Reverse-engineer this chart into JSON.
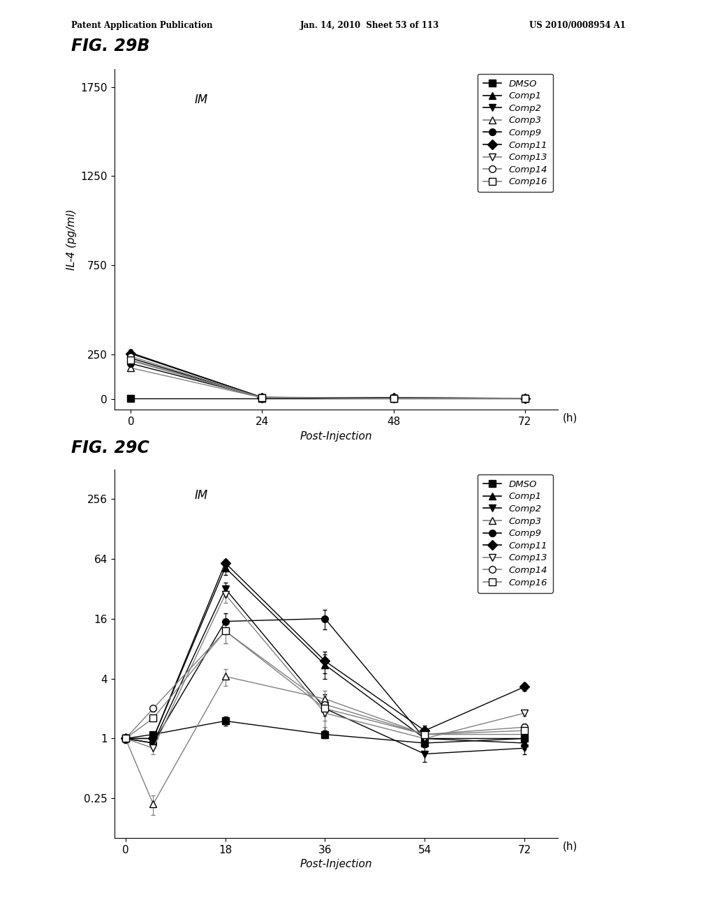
{
  "fig_title_B": "FIG. 29B",
  "fig_title_C": "FIG. 29C",
  "header_left": "Patent Application Publication",
  "header_mid": "Jan. 14, 2010  Sheet 53 of 113",
  "header_right": "US 2010/0008954 A1",
  "B_xlabel": "Post-Injection",
  "B_ylabel": "IL-4 (pg/ml)",
  "B_watermark": "IM",
  "B_xticklabels": [
    "0",
    "24",
    "48",
    "72"
  ],
  "B_xticks": [
    0,
    24,
    48,
    72
  ],
  "B_xlabel_h": "(h)",
  "B_yticks": [
    0,
    250,
    750,
    1250,
    1750
  ],
  "B_ylim": [
    -60,
    1850
  ],
  "B_xlim": [
    -3,
    78
  ],
  "C_xlabel": "Post-Injection",
  "C_watermark": "IM",
  "C_xticklabels": [
    "0",
    "18",
    "36",
    "54",
    "72"
  ],
  "C_xticks": [
    0,
    18,
    36,
    54,
    72
  ],
  "C_xlabel_h": "(h)",
  "C_yticks": [
    0.25,
    1,
    4,
    16,
    64,
    256
  ],
  "C_yticklabels": [
    "0.25",
    "1",
    "4",
    "16",
    "64",
    "256"
  ],
  "C_ylim_log": [
    0.1,
    500
  ],
  "C_xlim": [
    -2,
    78
  ],
  "legend_labels": [
    "DMSO",
    "Comp1",
    "Comp2",
    "Comp3",
    "Comp9",
    "Comp11",
    "Comp13",
    "Comp14",
    "Comp16"
  ],
  "B_series": {
    "DMSO": {
      "x": [
        0,
        24,
        48,
        72
      ],
      "y": [
        5,
        5,
        5,
        5
      ],
      "marker": "s",
      "lcolor": "black",
      "mcolor": "black",
      "filled": true
    },
    "Comp1": {
      "x": [
        0,
        24,
        48,
        72
      ],
      "y": [
        260,
        10,
        8,
        5
      ],
      "marker": "^",
      "lcolor": "black",
      "mcolor": "black",
      "filled": true
    },
    "Comp2": {
      "x": [
        0,
        24,
        48,
        72
      ],
      "y": [
        230,
        8,
        6,
        5
      ],
      "marker": "v",
      "lcolor": "black",
      "mcolor": "black",
      "filled": true
    },
    "Comp3": {
      "x": [
        0,
        24,
        48,
        72
      ],
      "y": [
        175,
        8,
        5,
        5
      ],
      "marker": "^",
      "lcolor": "gray",
      "mcolor": "black",
      "filled": false
    },
    "Comp9": {
      "x": [
        0,
        24,
        48,
        72
      ],
      "y": [
        200,
        10,
        6,
        5
      ],
      "marker": "o",
      "lcolor": "black",
      "mcolor": "black",
      "filled": true
    },
    "Comp11": {
      "x": [
        0,
        24,
        48,
        72
      ],
      "y": [
        255,
        10,
        7,
        5
      ],
      "marker": "D",
      "lcolor": "black",
      "mcolor": "black",
      "filled": true
    },
    "Comp13": {
      "x": [
        0,
        24,
        48,
        72
      ],
      "y": [
        215,
        8,
        5,
        5
      ],
      "marker": "v",
      "lcolor": "gray",
      "mcolor": "black",
      "filled": false
    },
    "Comp14": {
      "x": [
        0,
        24,
        48,
        72
      ],
      "y": [
        240,
        8,
        5,
        5
      ],
      "marker": "o",
      "lcolor": "gray",
      "mcolor": "black",
      "filled": false
    },
    "Comp16": {
      "x": [
        0,
        24,
        48,
        72
      ],
      "y": [
        220,
        8,
        5,
        5
      ],
      "marker": "s",
      "lcolor": "gray",
      "mcolor": "black",
      "filled": false
    }
  },
  "B_errors": {
    "DMSO": [
      2,
      2,
      2,
      2
    ],
    "Comp1": [
      18,
      3,
      2,
      2
    ],
    "Comp2": [
      15,
      3,
      2,
      2
    ],
    "Comp3": [
      12,
      3,
      2,
      2
    ],
    "Comp9": [
      14,
      3,
      2,
      2
    ],
    "Comp11": [
      20,
      3,
      2,
      2
    ],
    "Comp13": [
      14,
      3,
      2,
      2
    ],
    "Comp14": [
      16,
      3,
      2,
      2
    ],
    "Comp16": [
      15,
      3,
      2,
      2
    ]
  },
  "C_series": {
    "DMSO": {
      "x": [
        0,
        5,
        18,
        36,
        54,
        72
      ],
      "y": [
        1.0,
        1.1,
        1.5,
        1.1,
        0.9,
        1.0
      ],
      "marker": "s",
      "lcolor": "black",
      "mcolor": "black",
      "filled": true
    },
    "Comp1": {
      "x": [
        0,
        5,
        18,
        36,
        54,
        72
      ],
      "y": [
        1.0,
        1.0,
        52.0,
        5.5,
        1.0,
        0.9
      ],
      "marker": "^",
      "lcolor": "black",
      "mcolor": "black",
      "filled": true
    },
    "Comp2": {
      "x": [
        0,
        5,
        18,
        36,
        54,
        72
      ],
      "y": [
        1.0,
        0.9,
        32.0,
        2.0,
        0.7,
        0.8
      ],
      "marker": "v",
      "lcolor": "black",
      "mcolor": "black",
      "filled": true
    },
    "Comp3": {
      "x": [
        0,
        5,
        18,
        36,
        54,
        72
      ],
      "y": [
        1.0,
        0.22,
        4.2,
        2.5,
        1.1,
        1.1
      ],
      "marker": "^",
      "lcolor": "gray",
      "mcolor": "black",
      "filled": false
    },
    "Comp9": {
      "x": [
        0,
        5,
        18,
        36,
        54,
        72
      ],
      "y": [
        1.0,
        0.9,
        15.0,
        16.0,
        1.0,
        1.0
      ],
      "marker": "o",
      "lcolor": "black",
      "mcolor": "black",
      "filled": true
    },
    "Comp11": {
      "x": [
        0,
        5,
        18,
        36,
        54,
        72
      ],
      "y": [
        1.0,
        1.0,
        58.0,
        6.0,
        1.2,
        3.3
      ],
      "marker": "D",
      "lcolor": "black",
      "mcolor": "black",
      "filled": true
    },
    "Comp13": {
      "x": [
        0,
        5,
        18,
        36,
        54,
        72
      ],
      "y": [
        1.0,
        0.8,
        28.0,
        1.8,
        1.0,
        1.8
      ],
      "marker": "v",
      "lcolor": "gray",
      "mcolor": "black",
      "filled": false
    },
    "Comp14": {
      "x": [
        0,
        5,
        18,
        36,
        54,
        72
      ],
      "y": [
        1.0,
        2.0,
        12.0,
        2.2,
        1.1,
        1.3
      ],
      "marker": "o",
      "lcolor": "gray",
      "mcolor": "black",
      "filled": false
    },
    "Comp16": {
      "x": [
        0,
        5,
        18,
        36,
        54,
        72
      ],
      "y": [
        1.0,
        1.6,
        12.0,
        2.0,
        1.1,
        1.2
      ],
      "marker": "s",
      "lcolor": "gray",
      "mcolor": "black",
      "filled": false
    }
  },
  "C_errors": {
    "DMSO": [
      0.05,
      0.05,
      0.15,
      0.1,
      0.08,
      0.08
    ],
    "Comp1": [
      0.08,
      0.1,
      8.0,
      1.5,
      0.15,
      0.12
    ],
    "Comp2": [
      0.07,
      0.1,
      5.0,
      0.8,
      0.12,
      0.1
    ],
    "Comp3": [
      0.05,
      0.05,
      0.8,
      0.5,
      0.1,
      0.1
    ],
    "Comp9": [
      0.08,
      0.1,
      3.0,
      3.5,
      0.1,
      0.1
    ],
    "Comp11": [
      0.1,
      0.1,
      5.0,
      1.5,
      0.15,
      0.3
    ],
    "Comp13": [
      0.07,
      0.1,
      5.0,
      0.5,
      0.1,
      0.12
    ],
    "Comp14": [
      0.08,
      0.15,
      3.0,
      0.5,
      0.12,
      0.12
    ],
    "Comp16": [
      0.07,
      0.1,
      3.0,
      0.5,
      0.1,
      0.1
    ]
  }
}
